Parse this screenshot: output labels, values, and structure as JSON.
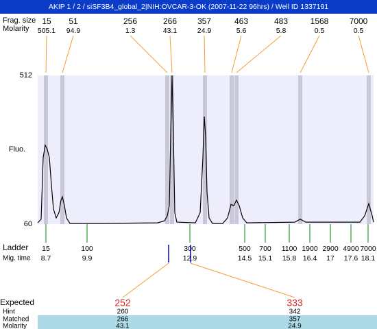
{
  "chart_data": {
    "type": "line",
    "title": "AKIP 1 / 2 / siSF3B4_global_2|NIH:OVCAR-3-OK (2007-11-22 96hrs) / Well ID 1337191",
    "y_label": "Fluo.",
    "ylim": [
      60,
      512
    ],
    "yticks": [
      60,
      512
    ],
    "xlim": [
      8.46,
      18.26
    ],
    "color": "#000000",
    "x": [
      8.46,
      8.56,
      8.62,
      8.68,
      8.74,
      8.8,
      8.86,
      8.92,
      9.0,
      9.08,
      9.14,
      9.18,
      9.24,
      9.3,
      9.4,
      10.36,
      11.96,
      12.16,
      12.24,
      12.3,
      12.34,
      12.38,
      12.42,
      12.46,
      12.52,
      13.06,
      13.2,
      13.28,
      13.32,
      13.36,
      13.4,
      13.46,
      13.56,
      13.86,
      14.0,
      14.1,
      14.18,
      14.26,
      14.34,
      14.44,
      14.56,
      15.96,
      16.12,
      16.28,
      17.86,
      18.0,
      18.12,
      18.22,
      18.26
    ],
    "values": [
      64,
      75,
      262,
      300,
      287,
      262,
      179,
      106,
      79,
      95,
      133,
      143,
      116,
      79,
      62,
      62,
      64,
      70,
      85,
      116,
      325,
      512,
      325,
      95,
      66,
      64,
      95,
      262,
      387,
      325,
      158,
      79,
      62,
      62,
      79,
      120,
      116,
      133,
      116,
      79,
      64,
      66,
      75,
      66,
      66,
      85,
      122,
      85,
      66
    ],
    "peaks": {
      "size_label": "Frag. size",
      "molarity_label": "Molarity",
      "items": [
        {
          "size": 15,
          "molarity": 505.1,
          "x": 8.7
        },
        {
          "size": 51,
          "molarity": 94.9,
          "x": 9.18
        },
        {
          "size": 256,
          "molarity": 1.3,
          "x": 12.24
        },
        {
          "size": 266,
          "molarity": 43.1,
          "x": 12.38
        },
        {
          "size": 357,
          "molarity": 24.9,
          "x": 13.34
        },
        {
          "size": 463,
          "molarity": 5.6,
          "x": 14.12
        },
        {
          "size": 483,
          "molarity": 5.8,
          "x": 14.26
        },
        {
          "size": 1568,
          "molarity": 0.5,
          "x": 16.12
        },
        {
          "size": 7000,
          "molarity": 0.5,
          "x": 18.12
        }
      ]
    },
    "ladder": {
      "label": "Ladder",
      "time_label": "Mig. time",
      "sizes": [
        15,
        100,
        300,
        500,
        700,
        1100,
        1900,
        2900,
        4900,
        7000
      ],
      "times": [
        8.7,
        9.9,
        12.9,
        14.5,
        15.1,
        15.8,
        16.4,
        17,
        17.6,
        18.1
      ]
    },
    "expected": {
      "label": "Expected",
      "hint_label": "Hint",
      "matched_label": "Matched",
      "molarity_label": "Molarity",
      "items": [
        {
          "expected": 252,
          "hint": 260,
          "matched": 266,
          "molarity": 43.1,
          "x": 12.28
        },
        {
          "expected": 333,
          "hint": 342,
          "matched": 357,
          "molarity": 24.9,
          "x": 12.92
        }
      ]
    }
  }
}
